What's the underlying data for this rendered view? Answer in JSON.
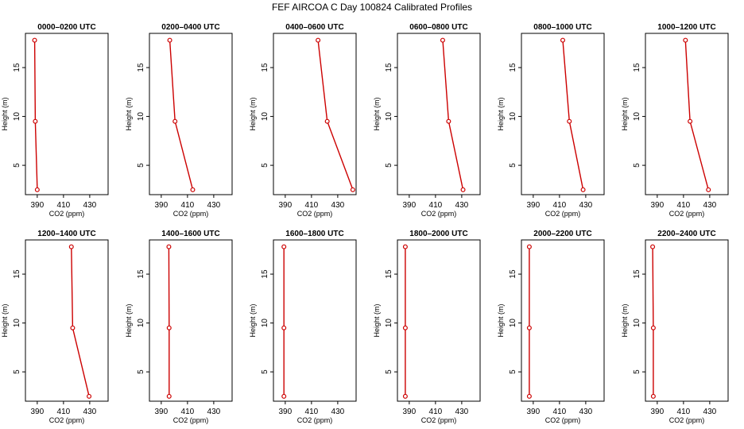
{
  "title": "FEF AIRCOA C  Day 100824  Calibrated Profiles",
  "colors": {
    "line": "#cc0000",
    "axis": "#000000",
    "background": "#ffffff"
  },
  "chart_data": [
    {
      "type": "line",
      "title": "0000–0200 UTC",
      "xlabel": "CO2 (ppm)",
      "ylabel": "Height (m)",
      "xlim": [
        381,
        444
      ],
      "ylim": [
        2,
        18.5
      ],
      "xticks": [
        390,
        410,
        430
      ],
      "yticks": [
        5,
        10,
        15
      ],
      "series": [
        {
          "name": "profile",
          "x": [
            388.0,
            388.5,
            390.0
          ],
          "y": [
            17.8,
            9.5,
            2.5
          ]
        }
      ]
    },
    {
      "type": "line",
      "title": "0200–0400 UTC",
      "xlabel": "CO2 (ppm)",
      "ylabel": "Height (m)",
      "xlim": [
        381,
        444
      ],
      "ylim": [
        2,
        18.5
      ],
      "xticks": [
        390,
        410,
        430
      ],
      "yticks": [
        5,
        10,
        15
      ],
      "series": [
        {
          "name": "profile",
          "x": [
            396.5,
            400.5,
            414.0
          ],
          "y": [
            17.8,
            9.5,
            2.5
          ]
        }
      ]
    },
    {
      "type": "line",
      "title": "0400–0600 UTC",
      "xlabel": "CO2 (ppm)",
      "ylabel": "Height (m)",
      "xlim": [
        381,
        444
      ],
      "ylim": [
        2,
        18.5
      ],
      "xticks": [
        390,
        410,
        430
      ],
      "yticks": [
        5,
        10,
        15
      ],
      "series": [
        {
          "name": "profile",
          "x": [
            415.0,
            422.0,
            441.5
          ],
          "y": [
            17.8,
            9.5,
            2.5
          ]
        }
      ]
    },
    {
      "type": "line",
      "title": "0600–0800 UTC",
      "xlabel": "CO2 (ppm)",
      "ylabel": "Height (m)",
      "xlim": [
        381,
        444
      ],
      "ylim": [
        2,
        18.5
      ],
      "xticks": [
        390,
        410,
        430
      ],
      "yticks": [
        5,
        10,
        15
      ],
      "series": [
        {
          "name": "profile",
          "x": [
            415.5,
            420.0,
            431.0
          ],
          "y": [
            17.8,
            9.5,
            2.5
          ]
        }
      ]
    },
    {
      "type": "line",
      "title": "0800–1000 UTC",
      "xlabel": "CO2 (ppm)",
      "ylabel": "Height (m)",
      "xlim": [
        381,
        444
      ],
      "ylim": [
        2,
        18.5
      ],
      "xticks": [
        390,
        410,
        430
      ],
      "yticks": [
        5,
        10,
        15
      ],
      "series": [
        {
          "name": "profile",
          "x": [
            412.5,
            417.5,
            428.0
          ],
          "y": [
            17.8,
            9.5,
            2.5
          ]
        }
      ]
    },
    {
      "type": "line",
      "title": "1000–1200 UTC",
      "xlabel": "CO2 (ppm)",
      "ylabel": "Height (m)",
      "xlim": [
        381,
        444
      ],
      "ylim": [
        2,
        18.5
      ],
      "xticks": [
        390,
        410,
        430
      ],
      "yticks": [
        5,
        10,
        15
      ],
      "series": [
        {
          "name": "profile",
          "x": [
            411.5,
            415.0,
            429.0
          ],
          "y": [
            17.8,
            9.5,
            2.5
          ]
        }
      ]
    },
    {
      "type": "line",
      "title": "1200–1400 UTC",
      "xlabel": "CO2 (ppm)",
      "ylabel": "Height (m)",
      "xlim": [
        381,
        444
      ],
      "ylim": [
        2,
        18.5
      ],
      "xticks": [
        390,
        410,
        430
      ],
      "yticks": [
        5,
        10,
        15
      ],
      "series": [
        {
          "name": "profile",
          "x": [
            416.0,
            417.0,
            429.5
          ],
          "y": [
            17.8,
            9.5,
            2.5
          ]
        }
      ]
    },
    {
      "type": "line",
      "title": "1400–1600 UTC",
      "xlabel": "CO2 (ppm)",
      "ylabel": "Height (m)",
      "xlim": [
        381,
        444
      ],
      "ylim": [
        2,
        18.5
      ],
      "xticks": [
        390,
        410,
        430
      ],
      "yticks": [
        5,
        10,
        15
      ],
      "series": [
        {
          "name": "profile",
          "x": [
            395.8,
            396.0,
            396.0
          ],
          "y": [
            17.8,
            9.5,
            2.5
          ]
        }
      ]
    },
    {
      "type": "line",
      "title": "1600–1800 UTC",
      "xlabel": "CO2 (ppm)",
      "ylabel": "Height (m)",
      "xlim": [
        381,
        444
      ],
      "ylim": [
        2,
        18.5
      ],
      "xticks": [
        390,
        410,
        430
      ],
      "yticks": [
        5,
        10,
        15
      ],
      "series": [
        {
          "name": "profile",
          "x": [
            389.0,
            389.0,
            389.0
          ],
          "y": [
            17.8,
            9.5,
            2.5
          ]
        }
      ]
    },
    {
      "type": "line",
      "title": "1800–2000 UTC",
      "xlabel": "CO2 (ppm)",
      "ylabel": "Height (m)",
      "xlim": [
        381,
        444
      ],
      "ylim": [
        2,
        18.5
      ],
      "xticks": [
        390,
        410,
        430
      ],
      "yticks": [
        5,
        10,
        15
      ],
      "series": [
        {
          "name": "profile",
          "x": [
            387.0,
            387.0,
            387.0
          ],
          "y": [
            17.8,
            9.5,
            2.5
          ]
        }
      ]
    },
    {
      "type": "line",
      "title": "2000–2200 UTC",
      "xlabel": "CO2 (ppm)",
      "ylabel": "Height (m)",
      "xlim": [
        381,
        444
      ],
      "ylim": [
        2,
        18.5
      ],
      "xticks": [
        390,
        410,
        430
      ],
      "yticks": [
        5,
        10,
        15
      ],
      "series": [
        {
          "name": "profile",
          "x": [
            387.0,
            387.0,
            387.0
          ],
          "y": [
            17.8,
            9.5,
            2.5
          ]
        }
      ]
    },
    {
      "type": "line",
      "title": "2200–2400 UTC",
      "xlabel": "CO2 (ppm)",
      "ylabel": "Height (m)",
      "xlim": [
        381,
        444
      ],
      "ylim": [
        2,
        18.5
      ],
      "xticks": [
        390,
        410,
        430
      ],
      "yticks": [
        5,
        10,
        15
      ],
      "series": [
        {
          "name": "profile",
          "x": [
            386.5,
            387.0,
            387.0
          ],
          "y": [
            17.8,
            9.5,
            2.5
          ]
        }
      ]
    }
  ]
}
